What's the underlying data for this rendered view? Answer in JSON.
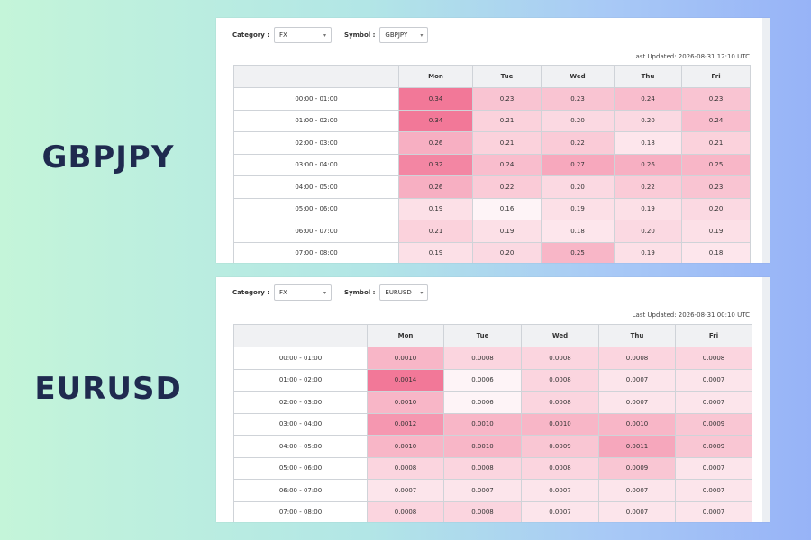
{
  "labels": {
    "top": "GBPJPY",
    "bottom": "EURUSD"
  },
  "panels": [
    {
      "category_label": "Category :",
      "category_value": "FX",
      "symbol_label": "Symbol :",
      "symbol_value": "GBPJPY",
      "last_updated": "Last Updated: 2026-08-31 12:10 UTC",
      "columns": [
        "",
        "Mon",
        "Tue",
        "Wed",
        "Thu",
        "Fri"
      ],
      "rows": [
        {
          "time": "00:00 - 01:00",
          "values": [
            "0.34",
            "0.23",
            "0.23",
            "0.24",
            "0.23"
          ]
        },
        {
          "time": "01:00 - 02:00",
          "values": [
            "0.34",
            "0.21",
            "0.20",
            "0.20",
            "0.24"
          ]
        },
        {
          "time": "02:00 - 03:00",
          "values": [
            "0.26",
            "0.21",
            "0.22",
            "0.18",
            "0.21"
          ]
        },
        {
          "time": "03:00 - 04:00",
          "values": [
            "0.32",
            "0.24",
            "0.27",
            "0.26",
            "0.25"
          ]
        },
        {
          "time": "04:00 - 05:00",
          "values": [
            "0.26",
            "0.22",
            "0.20",
            "0.22",
            "0.23"
          ]
        },
        {
          "time": "05:00 - 06:00",
          "values": [
            "0.19",
            "0.16",
            "0.19",
            "0.19",
            "0.20"
          ]
        },
        {
          "time": "06:00 - 07:00",
          "values": [
            "0.21",
            "0.19",
            "0.18",
            "0.20",
            "0.19"
          ]
        },
        {
          "time": "07:00 - 08:00",
          "values": [
            "0.19",
            "0.20",
            "0.25",
            "0.19",
            "0.18"
          ]
        }
      ]
    },
    {
      "category_label": "Category :",
      "category_value": "FX",
      "symbol_label": "Symbol :",
      "symbol_value": "EURUSD",
      "last_updated": "Last Updated: 2026-08-31 00:10 UTC",
      "columns": [
        "",
        "Mon",
        "Tue",
        "Wed",
        "Thu",
        "Fri"
      ],
      "rows": [
        {
          "time": "00:00 - 01:00",
          "values": [
            "0.0010",
            "0.0008",
            "0.0008",
            "0.0008",
            "0.0008"
          ]
        },
        {
          "time": "01:00 - 02:00",
          "values": [
            "0.0014",
            "0.0006",
            "0.0008",
            "0.0007",
            "0.0007"
          ]
        },
        {
          "time": "02:00 - 03:00",
          "values": [
            "0.0010",
            "0.0006",
            "0.0008",
            "0.0007",
            "0.0007"
          ]
        },
        {
          "time": "03:00 - 04:00",
          "values": [
            "0.0012",
            "0.0010",
            "0.0010",
            "0.0010",
            "0.0009"
          ]
        },
        {
          "time": "04:00 - 05:00",
          "values": [
            "0.0010",
            "0.0010",
            "0.0009",
            "0.0011",
            "0.0009"
          ]
        },
        {
          "time": "05:00 - 06:00",
          "values": [
            "0.0008",
            "0.0008",
            "0.0008",
            "0.0009",
            "0.0007"
          ]
        },
        {
          "time": "06:00 - 07:00",
          "values": [
            "0.0007",
            "0.0007",
            "0.0007",
            "0.0007",
            "0.0007"
          ]
        },
        {
          "time": "07:00 - 08:00",
          "values": [
            "0.0008",
            "0.0008",
            "0.0007",
            "0.0007",
            "0.0007"
          ]
        }
      ]
    }
  ],
  "colors": {
    "heat_low": "#ffffff",
    "heat_high": "#f27898",
    "header_bg": "#f0f1f3",
    "label_text": "#1f2a4f"
  },
  "icons": {
    "dropdown": "chevron-down-icon"
  }
}
